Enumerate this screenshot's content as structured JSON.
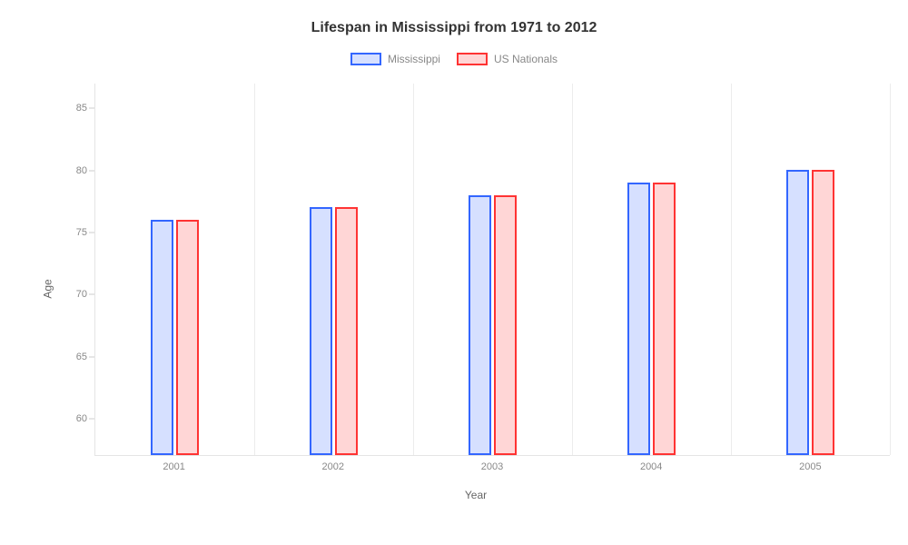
{
  "chart": {
    "type": "bar",
    "title": "Lifespan in Mississippi from 1971 to 2012",
    "title_fontsize": 16,
    "title_color": "#333333",
    "background_color": "#ffffff",
    "x_axis": {
      "title": "Year",
      "title_fontsize": 12,
      "label_fontsize": 11,
      "label_color": "#888888",
      "categories": [
        "2001",
        "2002",
        "2003",
        "2004",
        "2005"
      ]
    },
    "y_axis": {
      "title": "Age",
      "title_fontsize": 12,
      "label_fontsize": 11,
      "label_color": "#888888",
      "min": 57,
      "max": 87,
      "ticks": [
        60,
        65,
        70,
        75,
        80,
        85
      ]
    },
    "grid": {
      "vertical": true,
      "horizontal": false,
      "color": "#ececec"
    },
    "legend": {
      "position": "top",
      "label_fontsize": 12,
      "label_color": "#888888"
    },
    "series": [
      {
        "name": "Mississippi",
        "border_color": "#3366ff",
        "fill_color": "#d6e0ff",
        "border_width": 2,
        "values": [
          76,
          77,
          78,
          79,
          80
        ]
      },
      {
        "name": "US Nationals",
        "border_color": "#ff3333",
        "fill_color": "#ffd6d6",
        "border_width": 2,
        "values": [
          76,
          77,
          78,
          79,
          80
        ]
      }
    ],
    "bar_width_ratio": 0.14,
    "bar_gap_ratio": 0.02
  }
}
